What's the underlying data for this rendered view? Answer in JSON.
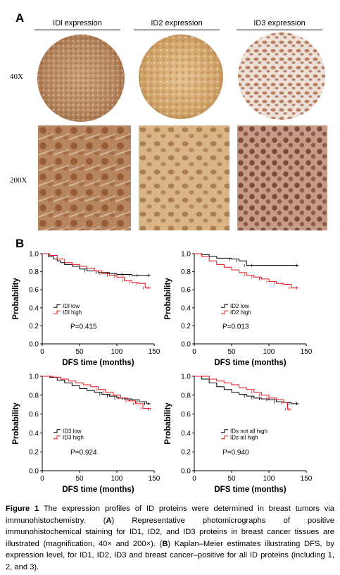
{
  "panel_a": {
    "letter": "A",
    "columns": [
      "IDl expression",
      "ID2 expression",
      "ID3 expression"
    ],
    "rows": [
      "40X",
      "200X"
    ]
  },
  "panel_b": {
    "letter": "B"
  },
  "chart_data": [
    {
      "type": "line",
      "xlabel": "DFS time (months)",
      "ylabel": "Probability",
      "xlim": [
        0,
        150
      ],
      "ylim": [
        0,
        1.0
      ],
      "xticks": [
        "0",
        "50",
        "100",
        "150"
      ],
      "yticks": [
        "0.0",
        "0.2",
        "0.4",
        "0.6",
        "0.8",
        "1.0"
      ],
      "annotation": "P=0.415",
      "legend_placement": "left-center",
      "series": [
        {
          "name": "IDl low",
          "color": "#000000",
          "x": [
            0,
            8,
            15,
            20,
            25,
            30,
            40,
            50,
            60,
            75,
            90,
            100,
            110,
            120,
            130,
            145
          ],
          "y": [
            1.0,
            0.97,
            0.94,
            0.92,
            0.9,
            0.88,
            0.86,
            0.83,
            0.81,
            0.79,
            0.78,
            0.77,
            0.77,
            0.76,
            0.76,
            0.76
          ]
        },
        {
          "name": "IDl high",
          "color": "#e8101a",
          "x": [
            0,
            10,
            20,
            30,
            40,
            50,
            60,
            70,
            80,
            90,
            100,
            110,
            120,
            130,
            138,
            145
          ],
          "y": [
            1.0,
            0.98,
            0.94,
            0.9,
            0.88,
            0.86,
            0.84,
            0.81,
            0.78,
            0.76,
            0.74,
            0.7,
            0.68,
            0.67,
            0.62,
            0.62
          ]
        }
      ]
    },
    {
      "type": "line",
      "xlabel": "DFS time (months)",
      "ylabel": "Probability",
      "xlim": [
        0,
        150
      ],
      "ylim": [
        0,
        1.0
      ],
      "xticks": [
        "0",
        "50",
        "100",
        "150"
      ],
      "yticks": [
        "0.0",
        "0.2",
        "0.4",
        "0.6",
        "0.8",
        "1.0"
      ],
      "annotation": "P=0.013",
      "legend_placement": "center",
      "series": [
        {
          "name": "ID2 low",
          "color": "#000000",
          "x": [
            0,
            10,
            20,
            30,
            40,
            50,
            60,
            70,
            80,
            140
          ],
          "y": [
            1.0,
            0.99,
            0.97,
            0.95,
            0.95,
            0.94,
            0.92,
            0.87,
            0.87,
            0.87
          ]
        },
        {
          "name": "ID2 high",
          "color": "#e8101a",
          "x": [
            0,
            10,
            20,
            30,
            40,
            50,
            60,
            70,
            80,
            90,
            100,
            110,
            120,
            130,
            140
          ],
          "y": [
            1.0,
            0.97,
            0.92,
            0.88,
            0.85,
            0.82,
            0.79,
            0.76,
            0.74,
            0.72,
            0.69,
            0.67,
            0.66,
            0.62,
            0.62
          ]
        }
      ]
    },
    {
      "type": "line",
      "xlabel": "DFS time (months)",
      "ylabel": "Probability",
      "xlim": [
        0,
        150
      ],
      "ylim": [
        0,
        1.0
      ],
      "xticks": [
        "0",
        "50",
        "100",
        "150"
      ],
      "yticks": [
        "0.0",
        "0.2",
        "0.4",
        "0.6",
        "0.8",
        "1.0"
      ],
      "annotation": "P=0.924",
      "legend_placement": "left-center",
      "series": [
        {
          "name": "ID3 low",
          "color": "#000000",
          "x": [
            0,
            10,
            20,
            30,
            40,
            50,
            60,
            70,
            80,
            90,
            100,
            110,
            120,
            130,
            140,
            145
          ],
          "y": [
            1.0,
            0.99,
            0.96,
            0.93,
            0.9,
            0.87,
            0.85,
            0.83,
            0.81,
            0.79,
            0.77,
            0.76,
            0.75,
            0.73,
            0.71,
            0.71
          ]
        },
        {
          "name": "ID3 high",
          "color": "#e8101a",
          "x": [
            0,
            15,
            25,
            35,
            45,
            55,
            65,
            75,
            85,
            95,
            105,
            115,
            125,
            135,
            145
          ],
          "y": [
            1.0,
            0.99,
            0.97,
            0.95,
            0.93,
            0.91,
            0.89,
            0.86,
            0.83,
            0.8,
            0.77,
            0.74,
            0.71,
            0.66,
            0.65
          ]
        }
      ]
    },
    {
      "type": "line",
      "xlabel": "DFS time (months)",
      "ylabel": "Probability",
      "xlim": [
        0,
        150
      ],
      "ylim": [
        0,
        1.0
      ],
      "xticks": [
        "0",
        "50",
        "100",
        "150"
      ],
      "yticks": [
        "0.0",
        "0.2",
        "0.4",
        "0.6",
        "0.8",
        "1.0"
      ],
      "annotation": "P=0.940",
      "legend_placement": "center",
      "series": [
        {
          "name": "IDs not all high",
          "color": "#000000",
          "x": [
            0,
            10,
            20,
            30,
            40,
            50,
            60,
            70,
            80,
            90,
            100,
            110,
            120,
            130,
            140
          ],
          "y": [
            1.0,
            0.97,
            0.93,
            0.89,
            0.86,
            0.83,
            0.81,
            0.79,
            0.77,
            0.76,
            0.75,
            0.73,
            0.72,
            0.71,
            0.71
          ]
        },
        {
          "name": "IDs all high",
          "color": "#e8101a",
          "x": [
            0,
            20,
            30,
            40,
            50,
            60,
            70,
            80,
            90,
            100,
            110,
            120,
            125,
            130
          ],
          "y": [
            1.0,
            0.97,
            0.95,
            0.93,
            0.91,
            0.88,
            0.86,
            0.83,
            0.8,
            0.77,
            0.75,
            0.72,
            0.65,
            0.65
          ]
        }
      ]
    }
  ],
  "caption": {
    "figure_label": "Figure 1",
    "text_1": " The expression profiles of ID proteins were determined in breast tumors via immunohistochemistry. (",
    "a_ref": "A",
    "text_2": ") Representative photomicrographs of positive immunohistochemical staining for ID1, ID2, and ID3 proteins in breast cancer tissues are illustrated (magnification, 40× and 200×). (",
    "b_ref": "B",
    "text_3": ") Kaplan–Meier estimates illustrating DFS, by expression level, for ID1, ID2, ID3 and breast cancer–positive for all ID proteins (including 1, 2, and 3)."
  }
}
